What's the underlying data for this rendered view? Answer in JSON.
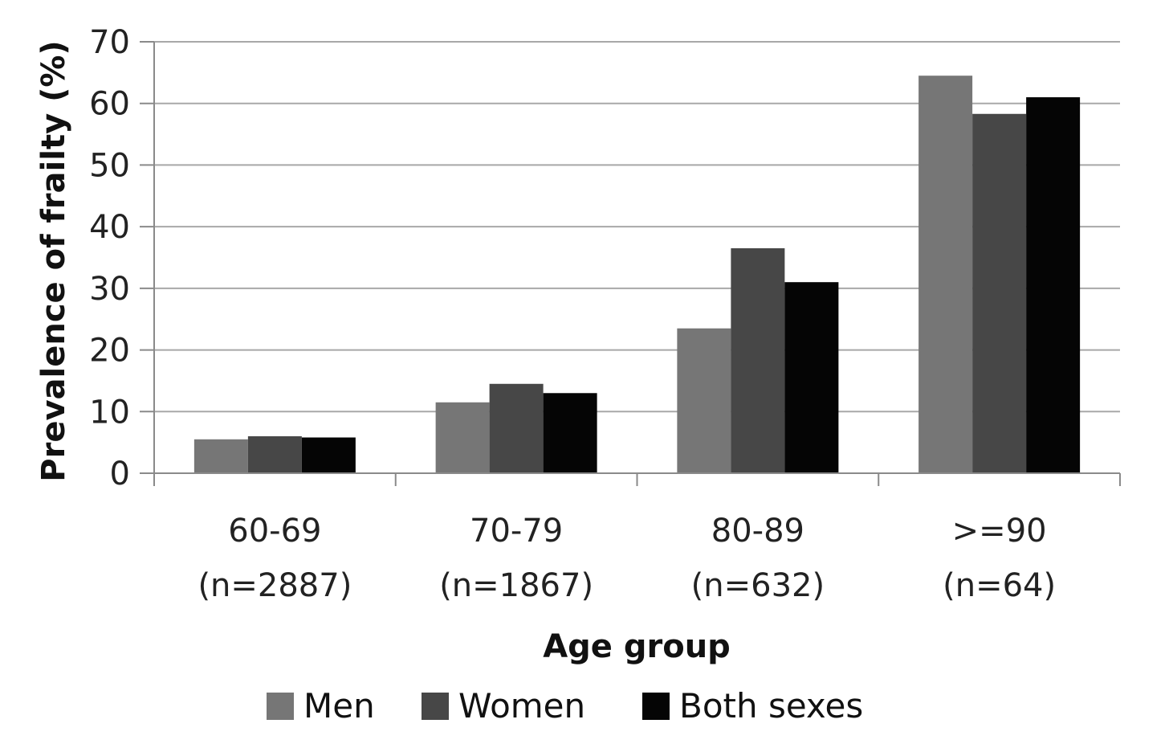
{
  "chart_data": {
    "type": "bar",
    "title": "",
    "xlabel": "Age group",
    "ylabel": "Prevalence  of frailty (%)",
    "ylim": [
      0,
      70
    ],
    "yticks": [
      0,
      10,
      20,
      30,
      40,
      50,
      60,
      70
    ],
    "grid": true,
    "legend_position": "bottom",
    "categories": [
      {
        "label": "60-69",
        "sublabel": "(n=2887)"
      },
      {
        "label": "70-79",
        "sublabel": "(n=1867)"
      },
      {
        "label": "80-89",
        "sublabel": "(n=632)"
      },
      {
        "label": ">=90",
        "sublabel": "(n=64)"
      }
    ],
    "series": [
      {
        "name": "Men",
        "color": "#767676",
        "values": [
          5.5,
          11.5,
          23.5,
          64.5
        ]
      },
      {
        "name": "Women",
        "color": "#474747",
        "values": [
          6.0,
          14.5,
          36.5,
          58.3
        ]
      },
      {
        "name": "Both sexes",
        "color": "#050505",
        "values": [
          5.8,
          13.0,
          31.0,
          61.0
        ]
      }
    ]
  }
}
